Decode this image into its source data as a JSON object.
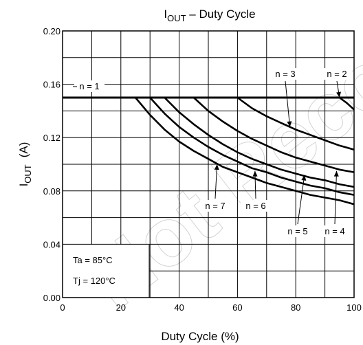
{
  "chart_data": {
    "type": "line",
    "title": {
      "main": "I",
      "sub": "OUT",
      "rest": " – Duty Cycle"
    },
    "xlabel": "Duty Cycle (%)",
    "ylabel": {
      "main": "I",
      "sub": "OUT",
      "unit": "(A)"
    },
    "xlim": [
      0,
      100
    ],
    "ylim": [
      0,
      0.2
    ],
    "grid": true,
    "x_ticks": [
      {
        "value": 0,
        "label": "0"
      },
      {
        "value": 20,
        "label": "20"
      },
      {
        "value": 40,
        "label": "40"
      },
      {
        "value": 60,
        "label": "60"
      },
      {
        "value": 80,
        "label": "80"
      },
      {
        "value": 100,
        "label": "100"
      }
    ],
    "y_ticks": [
      {
        "value": 0.0,
        "label": "0.00"
      },
      {
        "value": 0.04,
        "label": "0.04"
      },
      {
        "value": 0.08,
        "label": "0.08"
      },
      {
        "value": 0.12,
        "label": "0.12"
      },
      {
        "value": 0.16,
        "label": "0.16"
      },
      {
        "value": 0.2,
        "label": "0.20"
      }
    ],
    "conditions": [
      "Ta = 85°C",
      "Tj = 120°C"
    ],
    "watermark": "Not Recommended",
    "series": [
      {
        "name": "n = 1",
        "x": [
          0,
          100
        ],
        "y": [
          0.15,
          0.15
        ]
      },
      {
        "name": "n = 2",
        "x": [
          0,
          95,
          97.5,
          100
        ],
        "y": [
          0.15,
          0.15,
          0.146,
          0.141
        ]
      },
      {
        "name": "n = 3",
        "x": [
          0,
          60,
          65,
          70,
          75,
          80,
          85,
          90,
          95,
          100
        ],
        "y": [
          0.15,
          0.15,
          0.142,
          0.136,
          0.131,
          0.126,
          0.122,
          0.118,
          0.114,
          0.111
        ]
      },
      {
        "name": "n = 4",
        "x": [
          0,
          45,
          50,
          55,
          60,
          65,
          70,
          75,
          80,
          85,
          90,
          95,
          100
        ],
        "y": [
          0.15,
          0.15,
          0.14,
          0.132,
          0.125,
          0.119,
          0.114,
          0.109,
          0.105,
          0.102,
          0.099,
          0.096,
          0.094
        ]
      },
      {
        "name": "n = 5",
        "x": [
          0,
          35,
          40,
          45,
          50,
          55,
          60,
          65,
          70,
          75,
          80,
          85,
          90,
          95,
          100
        ],
        "y": [
          0.15,
          0.15,
          0.139,
          0.13,
          0.122,
          0.115,
          0.109,
          0.104,
          0.1,
          0.096,
          0.093,
          0.09,
          0.088,
          0.085,
          0.083
        ]
      },
      {
        "name": "n = 6",
        "x": [
          0,
          30,
          35,
          40,
          45,
          50,
          55,
          60,
          65,
          70,
          75,
          80,
          85,
          90,
          95,
          100
        ],
        "y": [
          0.15,
          0.15,
          0.138,
          0.128,
          0.12,
          0.113,
          0.107,
          0.102,
          0.097,
          0.094,
          0.09,
          0.087,
          0.084,
          0.082,
          0.079,
          0.077
        ]
      },
      {
        "name": "n = 7",
        "x": [
          0,
          25,
          30,
          35,
          40,
          45,
          50,
          55,
          60,
          65,
          70,
          75,
          80,
          85,
          90,
          95,
          100
        ],
        "y": [
          0.15,
          0.15,
          0.137,
          0.126,
          0.117,
          0.11,
          0.104,
          0.098,
          0.094,
          0.09,
          0.086,
          0.083,
          0.08,
          0.077,
          0.075,
          0.073,
          0.07
        ]
      }
    ],
    "annotations": [
      {
        "text": "n = 1",
        "series": "n = 1"
      },
      {
        "text": "n = 2",
        "series": "n = 2",
        "arrow_to": [
          95,
          0.15
        ]
      },
      {
        "text": "n = 3",
        "series": "n = 3",
        "arrow_to": [
          78,
          0.128
        ]
      },
      {
        "text": "n = 4",
        "series": "n = 4",
        "arrow_to": [
          94,
          0.095
        ]
      },
      {
        "text": "n = 5",
        "series": "n = 5",
        "arrow_to": [
          83,
          0.092
        ]
      },
      {
        "text": "n = 6",
        "series": "n = 6",
        "arrow_to": [
          66,
          0.095
        ]
      },
      {
        "text": "n = 7",
        "series": "n = 7",
        "arrow_to": [
          53,
          0.1
        ]
      }
    ]
  }
}
